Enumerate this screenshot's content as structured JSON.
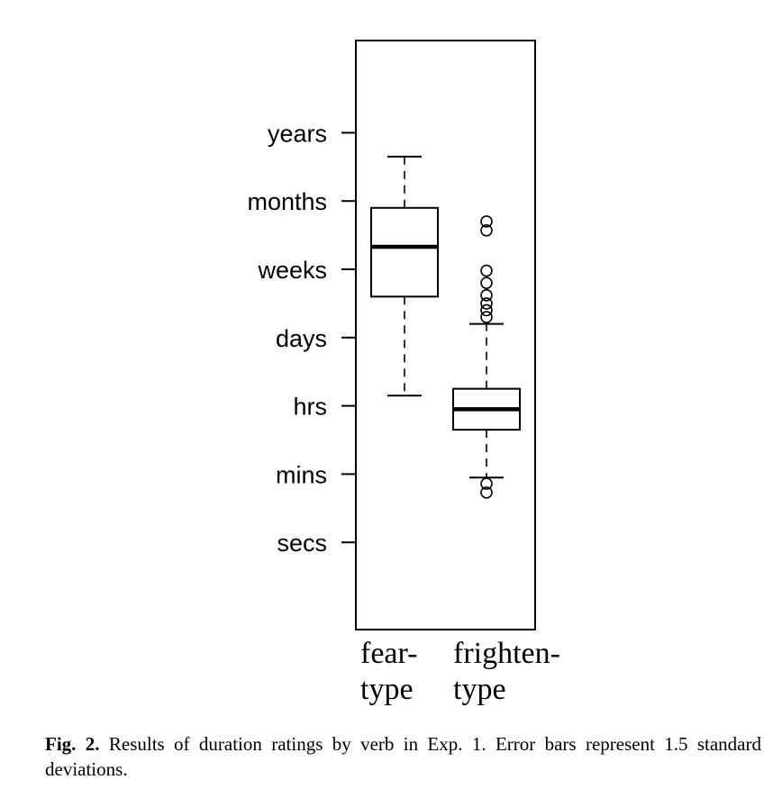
{
  "chart_data": {
    "type": "box",
    "y_axis": {
      "scale": "ordinal duration",
      "ticks": [
        "secs",
        "mins",
        "hrs",
        "days",
        "weeks",
        "months",
        "years"
      ],
      "tick_values": [
        1,
        2,
        3,
        4,
        5,
        6,
        7
      ],
      "ylim": [
        0,
        8.2
      ]
    },
    "categories": [
      {
        "label_lines": [
          "fear-",
          "type"
        ]
      },
      {
        "label_lines": [
          "frighten-",
          "type"
        ]
      }
    ],
    "boxes": [
      {
        "whisker_low": 3.15,
        "q1": 4.6,
        "median": 5.33,
        "q3": 5.9,
        "whisker_high": 6.65,
        "outliers": []
      },
      {
        "whisker_low": 1.95,
        "q1": 2.65,
        "median": 2.95,
        "q3": 3.25,
        "whisker_high": 4.2,
        "outliers": [
          1.73,
          1.86,
          4.3,
          4.4,
          4.5,
          4.62,
          4.8,
          4.98,
          5.57,
          5.7
        ]
      }
    ],
    "grid": false,
    "legend": "none"
  },
  "caption": {
    "label": "Fig. 2.",
    "text": " Results of duration ratings by verb in Exp. 1. Error bars represent 1.5 standard deviations."
  }
}
